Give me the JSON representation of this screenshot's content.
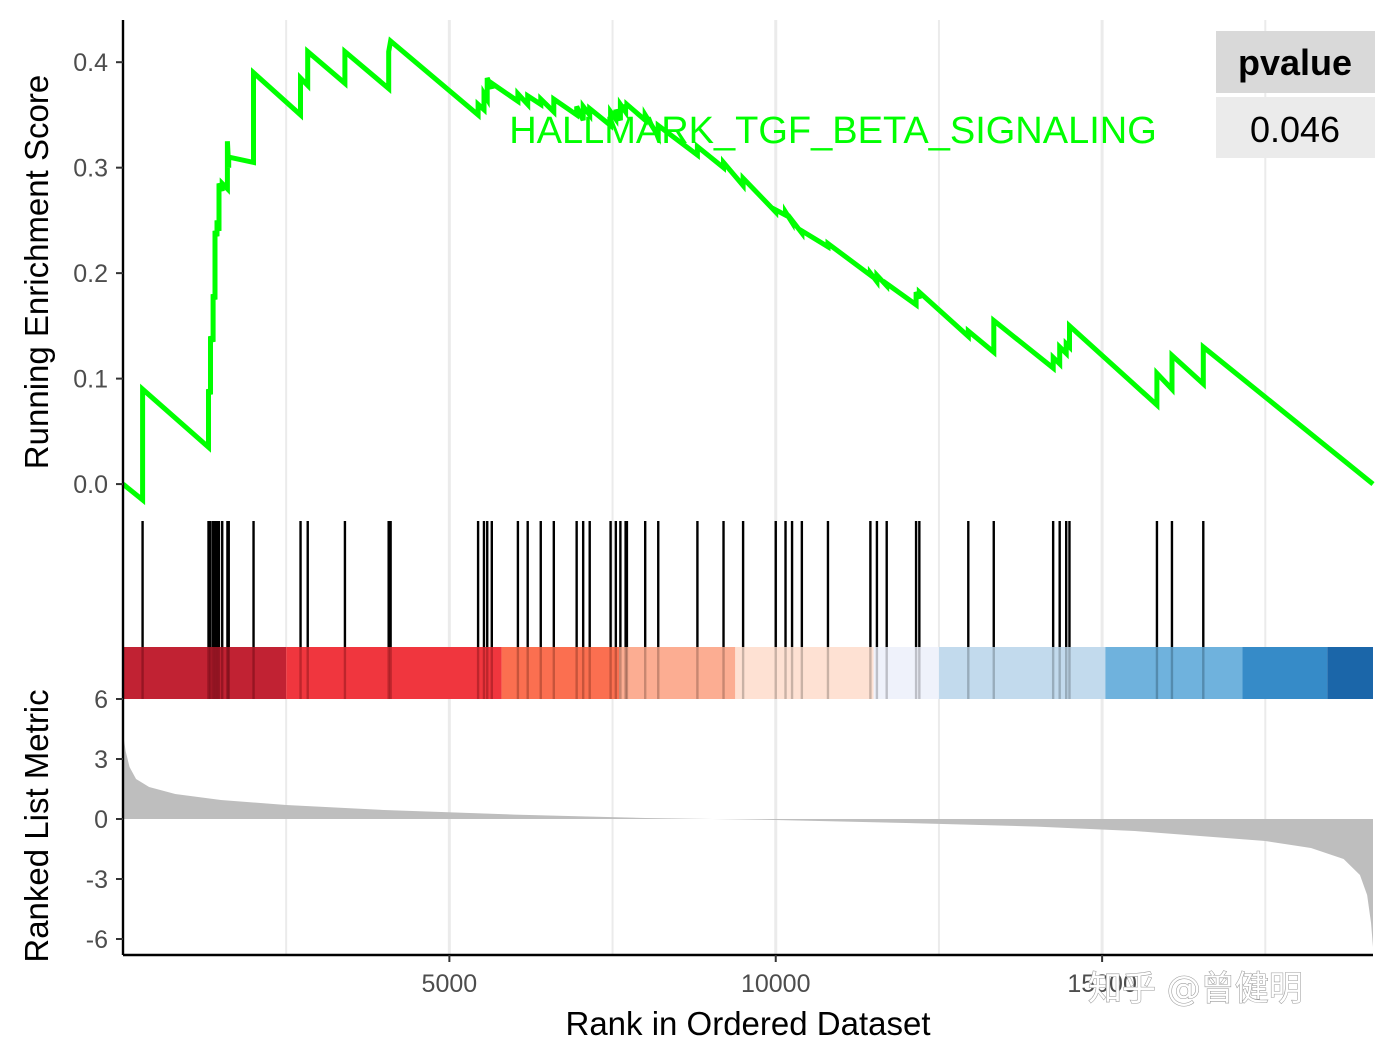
{
  "chart_data": {
    "type": "line",
    "gene_set": "HALLMARK_TGF_BETA_SIGNALING",
    "xlabel": "Rank in Ordered Dataset",
    "x_ticks": [
      5000,
      10000,
      15000
    ],
    "xlim": [
      0,
      19150
    ],
    "top_panel": {
      "ylabel": "Running Enrichment Score",
      "y_ticks": [
        "0.0",
        "0.1",
        "0.2",
        "0.3",
        "0.4"
      ],
      "ylim": [
        -0.035,
        0.44
      ],
      "series": [
        {
          "color": "#00ff00",
          "x": [
            0,
            300,
            300,
            1310,
            1310,
            1340,
            1340,
            1380,
            1380,
            1410,
            1410,
            1440,
            1440,
            1470,
            1470,
            1520,
            1520,
            1600,
            1600,
            1620,
            1620,
            2000,
            2000,
            2720,
            2720,
            2830,
            2830,
            3400,
            3400,
            4070,
            4070,
            4100,
            4100,
            5440,
            5440,
            5530,
            5530,
            5580,
            5580,
            5650,
            5650,
            6050,
            6050,
            6200,
            6200,
            6400,
            6400,
            6600,
            6600,
            6950,
            6950,
            7050,
            7050,
            7150,
            7150,
            7470,
            7470,
            7550,
            7550,
            7620,
            7620,
            7700,
            7700,
            7720,
            7720,
            8000,
            8000,
            8200,
            8200,
            8800,
            8800,
            9200,
            9200,
            9500,
            9500,
            10000,
            10000,
            10150,
            10150,
            10250,
            10250,
            10400,
            10400,
            10800,
            10800,
            11450,
            11450,
            11550,
            11550,
            11700,
            11700,
            12150,
            12150,
            12200,
            12200,
            12950,
            12950,
            13340,
            13340,
            14250,
            14250,
            14350,
            14350,
            14450,
            14450,
            14500,
            14500,
            15840,
            15840,
            16070,
            16070,
            16550,
            16550,
            19150
          ],
          "values": [
            0.0,
            -0.015,
            0.09,
            0.035,
            0.09,
            0.085,
            0.14,
            0.135,
            0.18,
            0.175,
            0.24,
            0.235,
            0.25,
            0.24,
            0.285,
            0.278,
            0.285,
            0.28,
            0.325,
            0.3,
            0.31,
            0.305,
            0.39,
            0.35,
            0.385,
            0.378,
            0.41,
            0.38,
            0.41,
            0.375,
            0.41,
            0.42,
            0.42,
            0.35,
            0.36,
            0.355,
            0.37,
            0.365,
            0.385,
            0.375,
            0.38,
            0.363,
            0.37,
            0.36,
            0.368,
            0.36,
            0.365,
            0.353,
            0.365,
            0.35,
            0.358,
            0.345,
            0.358,
            0.35,
            0.356,
            0.34,
            0.353,
            0.346,
            0.355,
            0.345,
            0.36,
            0.353,
            0.36,
            0.357,
            0.36,
            0.345,
            0.35,
            0.33,
            0.34,
            0.312,
            0.32,
            0.3,
            0.305,
            0.283,
            0.29,
            0.258,
            0.26,
            0.255,
            0.258,
            0.248,
            0.25,
            0.238,
            0.24,
            0.225,
            0.228,
            0.198,
            0.2,
            0.192,
            0.198,
            0.188,
            0.19,
            0.17,
            0.182,
            0.176,
            0.182,
            0.14,
            0.145,
            0.125,
            0.155,
            0.11,
            0.12,
            0.114,
            0.13,
            0.124,
            0.133,
            0.13,
            0.15,
            0.075,
            0.105,
            0.09,
            0.122,
            0.095,
            0.13,
            0.0
          ]
        }
      ]
    },
    "hits": [
      300,
      1310,
      1340,
      1380,
      1410,
      1440,
      1470,
      1520,
      1600,
      1620,
      2000,
      2720,
      2830,
      3400,
      4070,
      4100,
      5440,
      5530,
      5580,
      5650,
      6050,
      6200,
      6400,
      6600,
      6950,
      7050,
      7150,
      7470,
      7550,
      7620,
      7700,
      7720,
      8000,
      8200,
      8800,
      9200,
      9500,
      10000,
      10150,
      10250,
      10400,
      10800,
      11450,
      11550,
      11700,
      12150,
      12200,
      12950,
      13340,
      14250,
      14350,
      14450,
      14500,
      15840,
      16070,
      16550
    ],
    "heat_bands": [
      {
        "from": 0,
        "to": 2500,
        "color": "#bf1b2c"
      },
      {
        "from": 2500,
        "to": 5800,
        "color": "#ef3038"
      },
      {
        "from": 5800,
        "to": 7600,
        "color": "#fb6a4a"
      },
      {
        "from": 7600,
        "to": 9380,
        "color": "#fcaa8e"
      },
      {
        "from": 9380,
        "to": 11500,
        "color": "#fee0d2"
      },
      {
        "from": 11500,
        "to": 12500,
        "color": "#eef2fb"
      },
      {
        "from": 12500,
        "to": 15050,
        "color": "#c0d9ec"
      },
      {
        "from": 15050,
        "to": 17150,
        "color": "#6ab0dc"
      },
      {
        "from": 17150,
        "to": 18450,
        "color": "#2f87c6"
      },
      {
        "from": 18450,
        "to": 19150,
        "color": "#1461a6"
      }
    ],
    "bottom_panel": {
      "ylabel": "Ranked List Metric",
      "y_ticks": [
        "-6",
        "-3",
        "0",
        "3",
        "6"
      ],
      "ylim": [
        -6.8,
        6.0
      ],
      "fill_color": "#bebebe",
      "x": [
        0,
        40,
        100,
        200,
        400,
        800,
        1500,
        2500,
        4000,
        6000,
        8000,
        10000,
        12000,
        14000,
        15500,
        16500,
        17500,
        18200,
        18700,
        18950,
        19060,
        19120,
        19150
      ],
      "values": [
        4.3,
        3.4,
        2.6,
        2.0,
        1.6,
        1.25,
        0.95,
        0.7,
        0.45,
        0.22,
        0.05,
        -0.05,
        -0.2,
        -0.38,
        -0.6,
        -0.85,
        -1.1,
        -1.45,
        -2.0,
        -2.8,
        -3.8,
        -5.2,
        -6.4
      ]
    },
    "pvalue_table": {
      "header": "pvalue",
      "value": "0.046"
    }
  },
  "watermark": "知乎 @曾健明",
  "colors": {
    "es_line": "#00ff00",
    "grid": "#ebebeb",
    "axis": "#000000"
  }
}
